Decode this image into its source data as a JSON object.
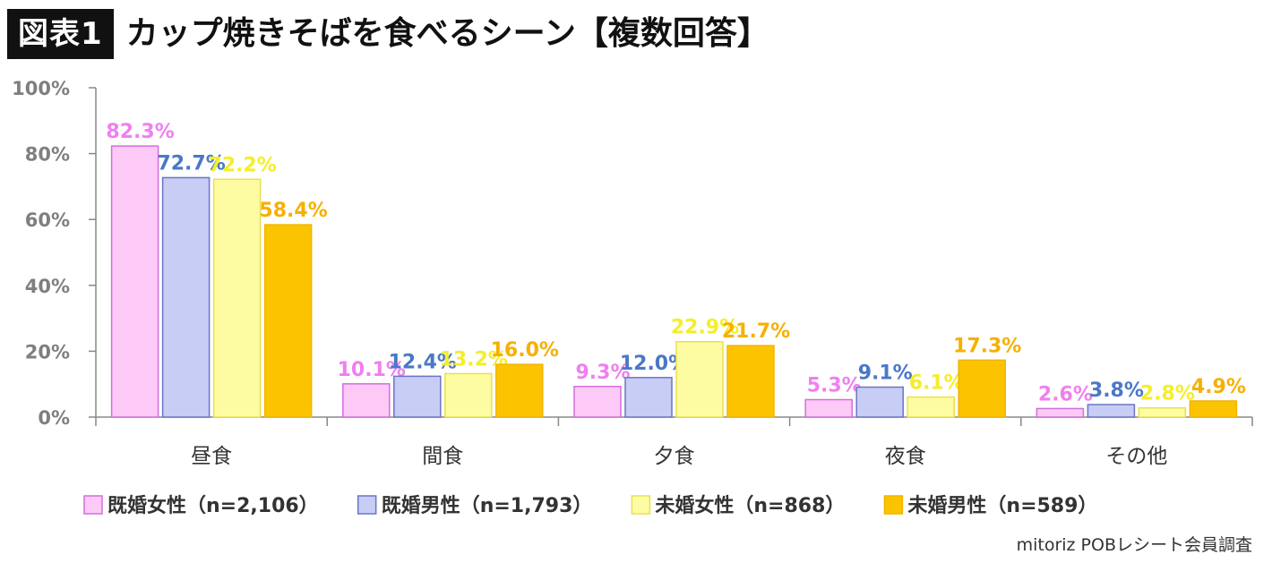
{
  "figure_label": "図表1",
  "title": "カップ焼きそばを食べるシーン【複数回答】",
  "source": "mitoriz POBレシート会員調査",
  "chart_data": {
    "type": "bar",
    "categories": [
      "昼食",
      "間食",
      "夕食",
      "夜食",
      "その他"
    ],
    "ylim": [
      0,
      100
    ],
    "y_ticks": [
      0,
      20,
      40,
      60,
      80,
      100
    ],
    "y_tick_labels": [
      "0%",
      "20%",
      "40%",
      "60%",
      "80%",
      "100%"
    ],
    "value_suffix": "%",
    "legend_position": "bottom",
    "grid": false,
    "series": [
      {
        "name": "既婚女性（n=2,106）",
        "values": [
          82.3,
          10.1,
          9.3,
          5.3,
          2.6
        ],
        "value_labels": [
          "82.3%",
          "10.1%",
          "9.3%",
          "5.3%",
          "2.6%"
        ],
        "fill": "#fdc9f6",
        "stroke": "#d070d8",
        "label_color": "#f07ff0"
      },
      {
        "name": "既婚男性（n=1,793）",
        "values": [
          72.7,
          12.4,
          12.0,
          9.1,
          3.8
        ],
        "value_labels": [
          "72.7%",
          "12.4%",
          "12.0%",
          "9.1%",
          "3.8%"
        ],
        "fill": "#c8cdf6",
        "stroke": "#6c75c4",
        "label_color": "#4a78c8"
      },
      {
        "name": "未婚女性（n=868）",
        "values": [
          72.2,
          13.2,
          22.9,
          6.1,
          2.8
        ],
        "value_labels": [
          "72.2%",
          "13.2%",
          "22.9%",
          "6.1%",
          "2.8%"
        ],
        "fill": "#fefca2",
        "stroke": "#e8e050",
        "label_color": "#f4ee2a"
      },
      {
        "name": "未婚男性（n=589）",
        "values": [
          58.4,
          16.0,
          21.7,
          17.3,
          4.9
        ],
        "value_labels": [
          "58.4%",
          "16.0%",
          "21.7%",
          "17.3%",
          "4.9%"
        ],
        "fill": "#fcc400",
        "stroke": "#f0b400",
        "label_color": "#f6b000"
      }
    ]
  }
}
